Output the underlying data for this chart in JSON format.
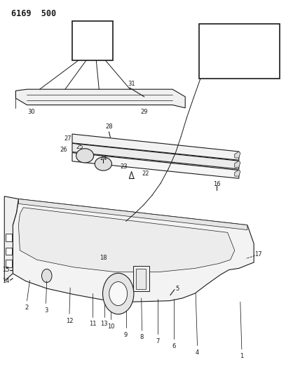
{
  "title": "6169  500",
  "bg_color": "#ffffff",
  "line_color": "#1a1a1a",
  "fig_width": 4.08,
  "fig_height": 5.33,
  "dpi": 100
}
